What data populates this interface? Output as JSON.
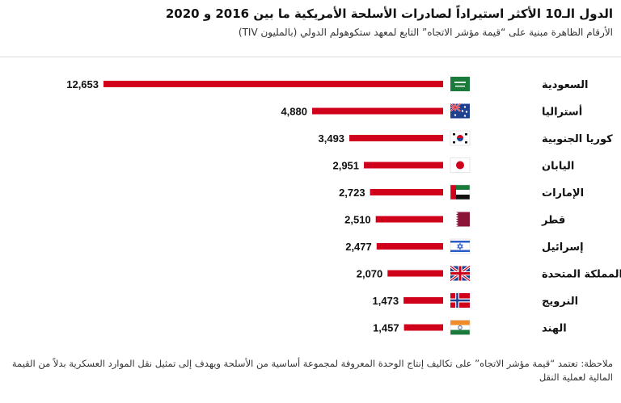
{
  "title": "الدول الـ10 الأكثر استيراداً لصادرات الأسلحة الأمريكية ما بين 2016 و 2020",
  "subtitle": "الأرقام الظاهرة مبنية على “قيمة مؤشر الاتجاه” التابع لمعهد ستكوهولم الدولي (بالمليون TIV)",
  "note": "ملاحظة: تعتمد “قيمة مؤشر الاتجاه” على تكاليف إنتاج الوحدة المعروفة لمجموعة أساسية من الأسلحة ويهدف إلى تمثيل نقل الموارد العسكرية بدلاً من القيمة المالية لعملية النقل",
  "colors": {
    "bar": "#d0021b"
  },
  "chart_data": {
    "type": "bar",
    "orientation": "horizontal",
    "categories": [
      "السعودية",
      "أستراليا",
      "كوريا الجنوبية",
      "اليابان",
      "الإمارات",
      "قطر",
      "إسرائيل",
      "المملكة المتحدة",
      "النرويج",
      "الهند"
    ],
    "values": [
      12653,
      4880,
      3493,
      2951,
      2723,
      2510,
      2477,
      2070,
      1473,
      1457
    ],
    "value_labels": [
      "12,653",
      "4,880",
      "3,493",
      "2,951",
      "2,723",
      "2,510",
      "2,477",
      "2,070",
      "1,473",
      "1,457"
    ],
    "flags": [
      "saudi-arabia-flag-icon",
      "australia-flag-icon",
      "south-korea-flag-icon",
      "japan-flag-icon",
      "uae-flag-icon",
      "qatar-flag-icon",
      "israel-flag-icon",
      "uk-flag-icon",
      "norway-flag-icon",
      "india-flag-icon"
    ],
    "xlim": [
      0,
      12653
    ]
  }
}
